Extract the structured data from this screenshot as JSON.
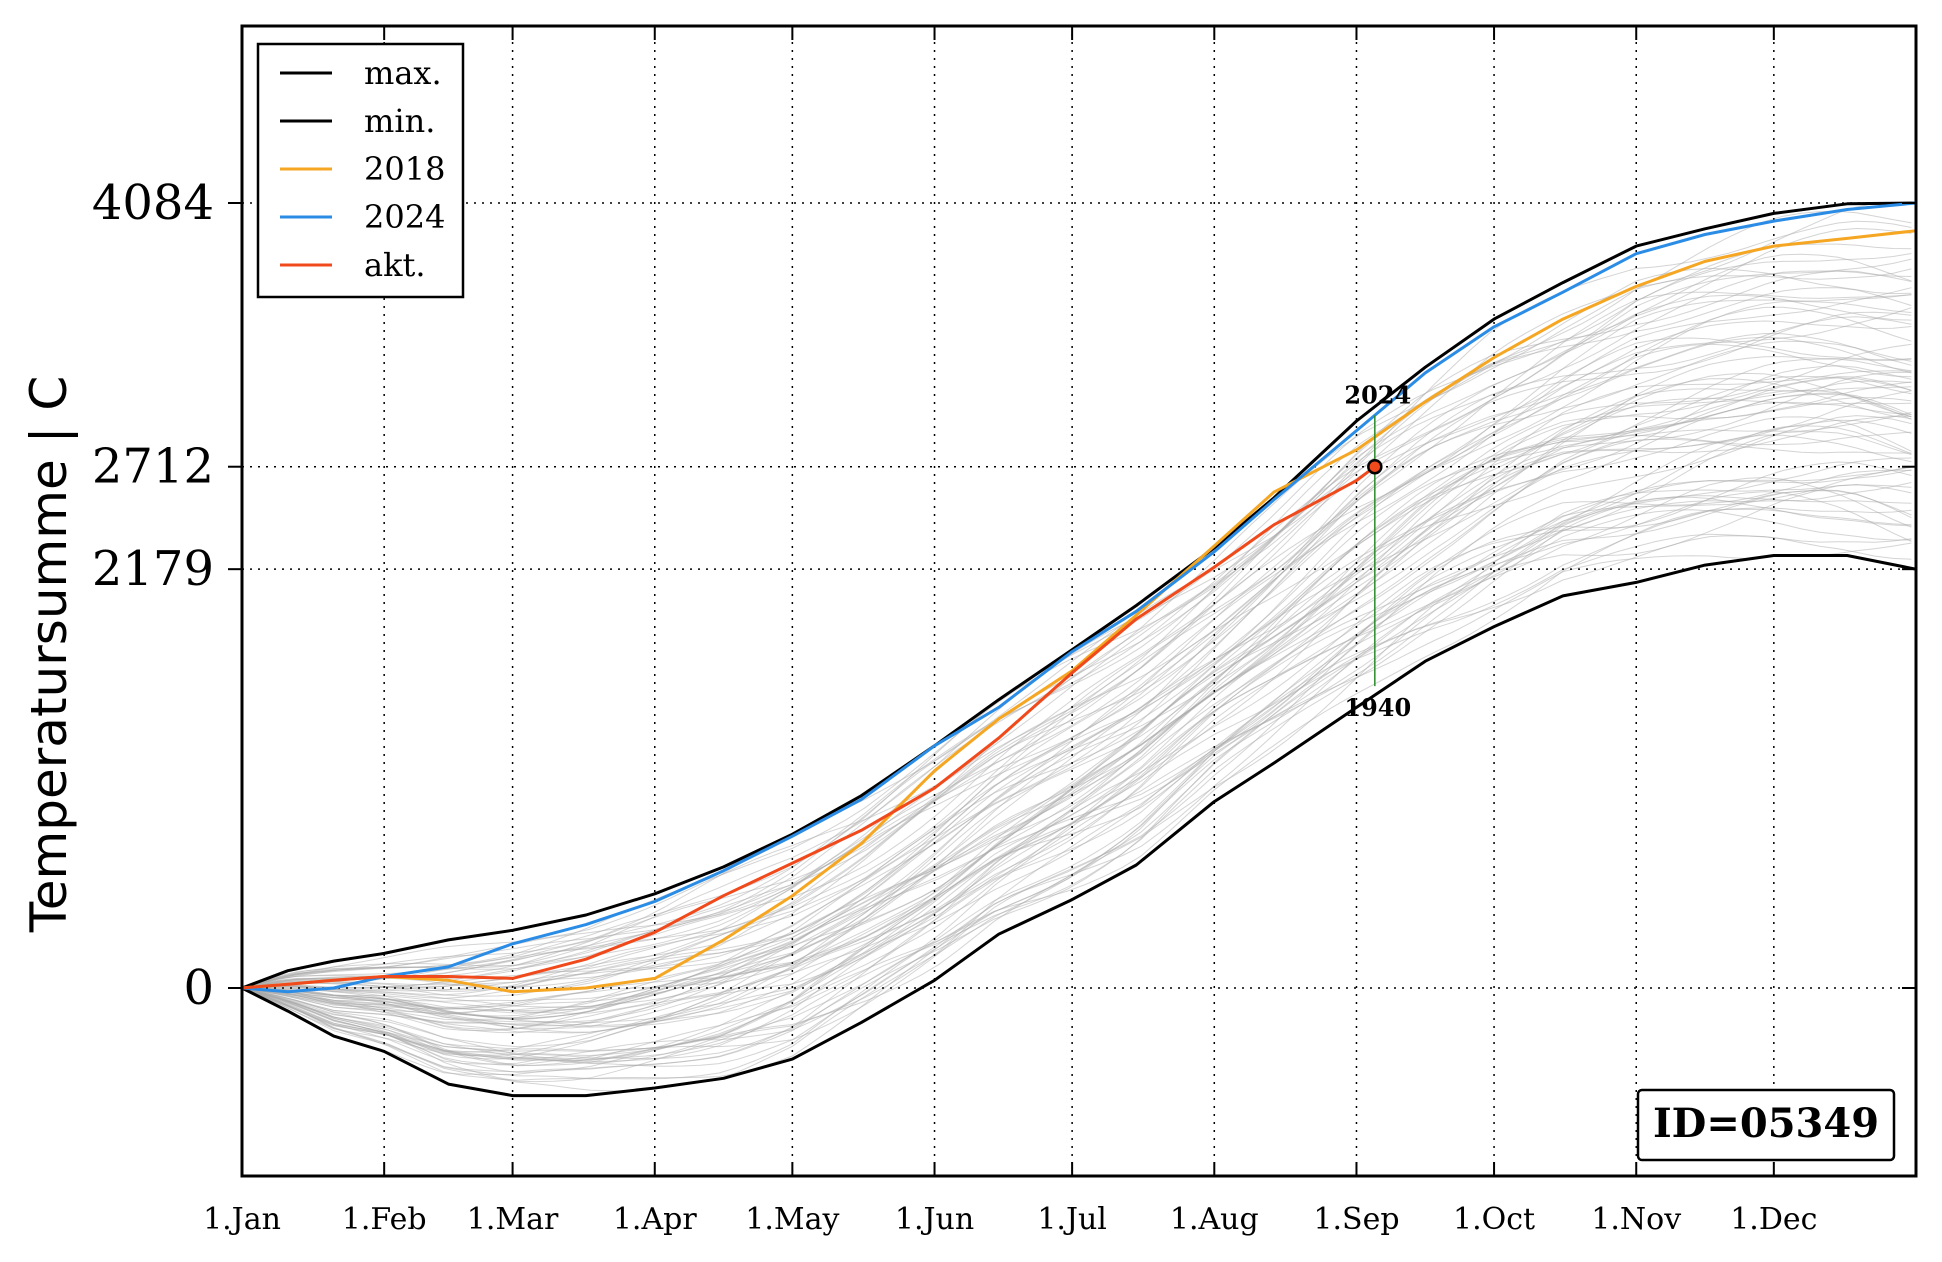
{
  "chart_data": {
    "type": "line",
    "title": "",
    "xlabel": "",
    "ylabel": "Temperatursumme | C",
    "x_ticks": [
      "1.Jan",
      "1.Feb",
      "1.Mar",
      "1.Apr",
      "1.May",
      "1.Jun",
      "1.Jul",
      "1.Aug",
      "1.Sep",
      "1.Oct",
      "1.Nov",
      "1.Dec"
    ],
    "x_tick_days": [
      0,
      31,
      59,
      90,
      120,
      151,
      181,
      212,
      243,
      273,
      304,
      334
    ],
    "xlim": [
      0,
      365
    ],
    "y_ticks": [
      0,
      2179,
      2712,
      4084
    ],
    "ylim": [
      -1000,
      5000
    ],
    "grid": "dotted at tick positions",
    "legend": {
      "placement": "top-left",
      "entries": [
        {
          "label": "max.",
          "color": "#000000"
        },
        {
          "label": "min.",
          "color": "#000000"
        },
        {
          "label": "2018",
          "color": "#f5a623"
        },
        {
          "label": "2024",
          "color": "#2b8ce6"
        },
        {
          "label": "akt.",
          "color": "#f04a1c"
        }
      ]
    },
    "series": [
      {
        "name": "max.",
        "color": "#000000",
        "x": [
          0,
          10,
          20,
          31,
          45,
          59,
          75,
          90,
          105,
          120,
          135,
          151,
          165,
          181,
          195,
          212,
          225,
          243,
          258,
          273,
          288,
          304,
          319,
          334,
          350,
          365
        ],
        "y": [
          0,
          90,
          140,
          180,
          250,
          300,
          380,
          490,
          630,
          800,
          1000,
          1260,
          1500,
          1760,
          1990,
          2290,
          2550,
          2950,
          3230,
          3480,
          3670,
          3860,
          3950,
          4030,
          4080,
          4084
        ]
      },
      {
        "name": "min.",
        "color": "#000000",
        "x": [
          0,
          10,
          20,
          31,
          45,
          59,
          75,
          90,
          105,
          120,
          135,
          151,
          165,
          181,
          195,
          212,
          225,
          243,
          258,
          273,
          288,
          304,
          319,
          334,
          350,
          365
        ],
        "y": [
          0,
          -120,
          -250,
          -330,
          -500,
          -560,
          -560,
          -520,
          -470,
          -370,
          -180,
          40,
          280,
          460,
          640,
          970,
          1170,
          1460,
          1700,
          1880,
          2040,
          2110,
          2200,
          2250,
          2250,
          2179
        ]
      },
      {
        "name": "2018",
        "color": "#f5a623",
        "x": [
          0,
          10,
          20,
          31,
          45,
          59,
          75,
          90,
          105,
          120,
          135,
          151,
          165,
          181,
          195,
          212,
          225,
          243,
          258,
          273,
          288,
          304,
          319,
          334,
          350,
          365
        ],
        "y": [
          0,
          20,
          40,
          60,
          40,
          -20,
          0,
          50,
          250,
          480,
          750,
          1130,
          1400,
          1650,
          1940,
          2300,
          2580,
          2800,
          3050,
          3280,
          3480,
          3650,
          3780,
          3860,
          3900,
          3940
        ]
      },
      {
        "name": "2024",
        "color": "#2b8ce6",
        "x": [
          0,
          10,
          20,
          31,
          45,
          59,
          75,
          90,
          105,
          120,
          135,
          151,
          165,
          181,
          195,
          212,
          225,
          243,
          258,
          273,
          288,
          304,
          319,
          334,
          350,
          365
        ],
        "y": [
          0,
          -20,
          0,
          60,
          110,
          230,
          330,
          450,
          610,
          790,
          980,
          1260,
          1460,
          1750,
          1960,
          2270,
          2540,
          2900,
          3200,
          3440,
          3620,
          3820,
          3920,
          3990,
          4050,
          4084
        ]
      },
      {
        "name": "akt.",
        "color": "#f04a1c",
        "x": [
          0,
          10,
          20,
          31,
          45,
          59,
          75,
          90,
          105,
          120,
          135,
          151,
          165,
          181,
          195,
          212,
          225,
          243,
          247
        ],
        "y": [
          0,
          20,
          40,
          60,
          60,
          50,
          150,
          290,
          480,
          650,
          820,
          1040,
          1300,
          1640,
          1920,
          2190,
          2410,
          2640,
          2712
        ]
      }
    ],
    "reference_lines": [
      {
        "y": 4084,
        "label": "4084"
      },
      {
        "y": 2712,
        "label": "2712"
      },
      {
        "y": 2179,
        "label": "2179"
      },
      {
        "y": 0,
        "label": "0"
      }
    ],
    "current_point": {
      "x": 247,
      "y": 2712
    },
    "annotations": [
      {
        "text": "2024",
        "x": 247,
        "y": 3000
      },
      {
        "text": "1940",
        "x": 247,
        "y": 1550
      }
    ],
    "vertical_range": {
      "x": 247,
      "y_from": 1550,
      "y_to": 3000,
      "color": "#2a8a2a"
    },
    "background_years_count": 80,
    "background_color": "#aaaaaa",
    "id_label": "ID=05349"
  }
}
